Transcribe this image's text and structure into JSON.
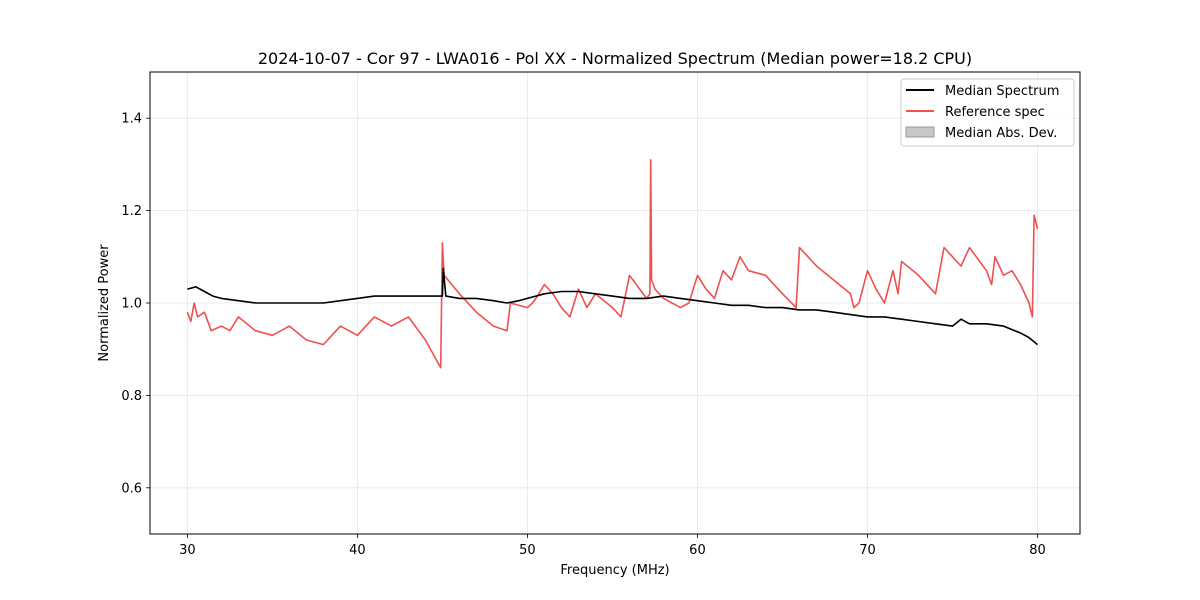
{
  "chart_data": {
    "type": "line",
    "title": "2024-10-07 - Cor 97 - LWA016 - Pol XX - Normalized Spectrum (Median power=18.2 CPU)",
    "xlabel": "Frequency (MHz)",
    "ylabel": "Normalized Power",
    "xlim": [
      27.8,
      82.5
    ],
    "ylim": [
      0.5,
      1.5
    ],
    "xticks": [
      30,
      40,
      50,
      60,
      70,
      80
    ],
    "yticks": [
      0.6,
      0.8,
      1.0,
      1.2,
      1.4
    ],
    "xtick_labels": [
      "30",
      "40",
      "50",
      "60",
      "70",
      "80"
    ],
    "ytick_labels": [
      "0.6",
      "0.8",
      "1.0",
      "1.2",
      "1.4"
    ],
    "grid": true,
    "legend_position": "top-right",
    "colors": {
      "median": "#000000",
      "reference": "#f05050",
      "mad": "#c8c8c8"
    },
    "legend": [
      "Median Spectrum",
      "Reference spec",
      "Median Abs. Dev."
    ],
    "series": [
      {
        "name": "Median Spectrum",
        "x": [
          30.0,
          30.5,
          31.0,
          31.5,
          32.0,
          33.0,
          34.0,
          35.0,
          36.0,
          37.0,
          38.0,
          39.0,
          40.0,
          41.0,
          42.0,
          43.0,
          44.0,
          45.0,
          45.05,
          45.2,
          46.0,
          47.0,
          48.0,
          48.8,
          49.5,
          50.0,
          51.0,
          52.0,
          53.0,
          54.0,
          55.0,
          56.0,
          57.0,
          58.0,
          59.0,
          60.0,
          61.0,
          62.0,
          63.0,
          64.0,
          65.0,
          66.0,
          67.0,
          68.0,
          69.0,
          70.0,
          71.0,
          72.0,
          73.0,
          74.0,
          75.0,
          75.5,
          76.0,
          77.0,
          78.0,
          79.0,
          79.5,
          80.0
        ],
        "values": [
          1.03,
          1.035,
          1.025,
          1.015,
          1.01,
          1.005,
          1.0,
          1.0,
          1.0,
          1.0,
          1.0,
          1.005,
          1.01,
          1.015,
          1.015,
          1.015,
          1.015,
          1.015,
          1.075,
          1.015,
          1.01,
          1.01,
          1.005,
          1.0,
          1.005,
          1.01,
          1.02,
          1.025,
          1.025,
          1.02,
          1.015,
          1.01,
          1.01,
          1.015,
          1.01,
          1.005,
          1.0,
          0.995,
          0.995,
          0.99,
          0.99,
          0.985,
          0.985,
          0.98,
          0.975,
          0.97,
          0.97,
          0.965,
          0.96,
          0.955,
          0.95,
          0.965,
          0.955,
          0.955,
          0.95,
          0.935,
          0.925,
          0.91
        ]
      },
      {
        "name": "Reference spec",
        "x": [
          30.0,
          30.2,
          30.4,
          30.6,
          31.0,
          31.4,
          32.0,
          32.5,
          33.0,
          34.0,
          35.0,
          36.0,
          37.0,
          38.0,
          39.0,
          40.0,
          41.0,
          42.0,
          43.0,
          44.0,
          44.9,
          45.0,
          45.1,
          46.0,
          47.0,
          48.0,
          48.8,
          49.0,
          50.0,
          50.3,
          50.5,
          51.0,
          51.5,
          52.0,
          52.5,
          53.0,
          53.5,
          54.0,
          55.0,
          55.5,
          56.0,
          57.0,
          57.2,
          57.25,
          57.3,
          57.5,
          58.0,
          59.0,
          59.5,
          60.0,
          60.5,
          61.0,
          61.5,
          62.0,
          62.5,
          63.0,
          64.0,
          65.0,
          65.8,
          66.0,
          67.0,
          68.0,
          69.0,
          69.2,
          69.5,
          70.0,
          70.5,
          71.0,
          71.5,
          71.8,
          72.0,
          73.0,
          74.0,
          74.5,
          75.0,
          75.5,
          76.0,
          77.0,
          77.3,
          77.5,
          78.0,
          78.5,
          79.0,
          79.5,
          79.7,
          79.8,
          80.0
        ],
        "values": [
          0.98,
          0.96,
          1.0,
          0.97,
          0.98,
          0.94,
          0.95,
          0.94,
          0.97,
          0.94,
          0.93,
          0.95,
          0.92,
          0.91,
          0.95,
          0.93,
          0.97,
          0.95,
          0.97,
          0.92,
          0.86,
          1.13,
          1.06,
          1.02,
          0.98,
          0.95,
          0.94,
          1.0,
          0.99,
          1.0,
          1.01,
          1.04,
          1.02,
          0.99,
          0.97,
          1.03,
          0.99,
          1.02,
          0.99,
          0.97,
          1.06,
          1.01,
          1.02,
          1.31,
          1.05,
          1.03,
          1.01,
          0.99,
          1.0,
          1.06,
          1.03,
          1.01,
          1.07,
          1.05,
          1.1,
          1.07,
          1.06,
          1.02,
          0.99,
          1.12,
          1.08,
          1.05,
          1.02,
          0.99,
          1.0,
          1.07,
          1.03,
          1.0,
          1.07,
          1.02,
          1.09,
          1.06,
          1.02,
          1.12,
          1.1,
          1.08,
          1.12,
          1.07,
          1.04,
          1.1,
          1.06,
          1.07,
          1.04,
          1.0,
          0.97,
          1.19,
          1.16
        ]
      }
    ]
  }
}
